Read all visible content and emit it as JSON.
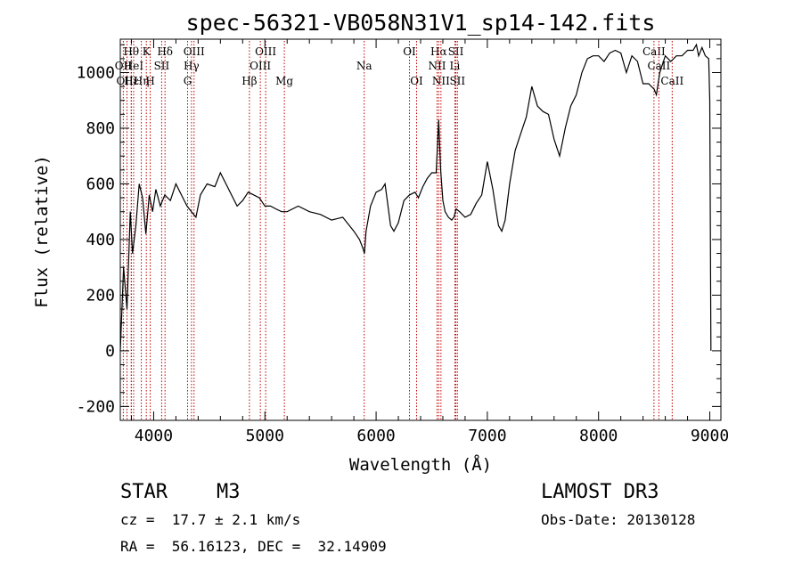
{
  "chart_data": {
    "type": "line",
    "title": "spec-56321-VB058N31V1_sp14-142.fits",
    "xlabel": "Wavelength (Å)",
    "ylabel": "Flux (relative)",
    "xlim": [
      3700,
      9100
    ],
    "ylim": [
      -250,
      1120
    ],
    "x_ticks": [
      4000,
      5000,
      6000,
      7000,
      8000,
      9000
    ],
    "y_ticks": [
      -200,
      0,
      200,
      400,
      600,
      800,
      1000
    ],
    "grid": false,
    "spectrum": {
      "name": "flux",
      "x": [
        3700,
        3730,
        3760,
        3790,
        3810,
        3840,
        3870,
        3900,
        3930,
        3960,
        3990,
        4020,
        4060,
        4100,
        4150,
        4200,
        4250,
        4300,
        4340,
        4380,
        4420,
        4480,
        4550,
        4600,
        4650,
        4700,
        4750,
        4800,
        4850,
        4900,
        4950,
        5000,
        5050,
        5100,
        5150,
        5200,
        5300,
        5400,
        5500,
        5600,
        5700,
        5800,
        5850,
        5880,
        5895,
        5910,
        5950,
        6000,
        6050,
        6080,
        6100,
        6130,
        6160,
        6200,
        6250,
        6300,
        6350,
        6380,
        6420,
        6460,
        6500,
        6540,
        6563,
        6580,
        6600,
        6620,
        6650,
        6680,
        6700,
        6720,
        6750,
        6800,
        6850,
        6900,
        6950,
        7000,
        7050,
        7080,
        7100,
        7130,
        7160,
        7200,
        7250,
        7300,
        7350,
        7400,
        7450,
        7500,
        7550,
        7600,
        7650,
        7680,
        7700,
        7750,
        7800,
        7850,
        7900,
        7950,
        8000,
        8050,
        8100,
        8150,
        8200,
        8250,
        8300,
        8350,
        8400,
        8450,
        8500,
        8520,
        8550,
        8600,
        8650,
        8700,
        8750,
        8800,
        8850,
        8880,
        8900,
        8930,
        8960,
        8990,
        9000,
        9010
      ],
      "y": [
        0,
        300,
        150,
        500,
        350,
        450,
        600,
        550,
        420,
        560,
        500,
        580,
        520,
        560,
        540,
        600,
        560,
        520,
        500,
        480,
        560,
        600,
        590,
        640,
        600,
        560,
        520,
        540,
        570,
        560,
        550,
        520,
        520,
        510,
        500,
        500,
        520,
        500,
        490,
        470,
        480,
        430,
        400,
        370,
        350,
        430,
        520,
        570,
        580,
        600,
        540,
        450,
        430,
        460,
        540,
        560,
        570,
        550,
        590,
        620,
        640,
        640,
        830,
        650,
        540,
        500,
        480,
        470,
        480,
        510,
        500,
        480,
        490,
        530,
        560,
        680,
        580,
        500,
        450,
        430,
        470,
        600,
        720,
        780,
        840,
        950,
        880,
        860,
        850,
        760,
        700,
        760,
        800,
        880,
        920,
        1000,
        1050,
        1060,
        1060,
        1040,
        1070,
        1080,
        1070,
        1000,
        1060,
        1040,
        960,
        960,
        940,
        920,
        1000,
        1060,
        1040,
        1060,
        1060,
        1080,
        1080,
        1100,
        1060,
        1090,
        1060,
        1050,
        900,
        0
      ]
    },
    "lines": [
      {
        "label": "Hθ",
        "x": 3798,
        "row": 1
      },
      {
        "label": "OII",
        "x": 3727,
        "row": 2
      },
      {
        "label": "OIII",
        "x": 3760,
        "row": 3
      },
      {
        "label": "Hε",
        "x": 3800,
        "row": 3
      },
      {
        "label": "HeI",
        "x": 3820,
        "row": 2
      },
      {
        "label": "K",
        "x": 3934,
        "row": 1
      },
      {
        "label": "SII",
        "x": 4072,
        "row": 2
      },
      {
        "label": "Hη",
        "x": 3889,
        "row": 3
      },
      {
        "label": "H",
        "x": 3969,
        "row": 3
      },
      {
        "label": "Hδ",
        "x": 4102,
        "row": 1
      },
      {
        "label": "OIII",
        "x": 4363,
        "row": 1
      },
      {
        "label": "Hγ",
        "x": 4340,
        "row": 2
      },
      {
        "label": "G",
        "x": 4305,
        "row": 3
      },
      {
        "label": "Hβ",
        "x": 4861,
        "row": 3
      },
      {
        "label": "OIII",
        "x": 5007,
        "row": 1
      },
      {
        "label": "OIII",
        "x": 4959,
        "row": 2
      },
      {
        "label": "Mg",
        "x": 5175,
        "row": 3
      },
      {
        "label": "Na",
        "x": 5893,
        "row": 2
      },
      {
        "label": "OI",
        "x": 6300,
        "row": 1
      },
      {
        "label": "OI",
        "x": 6364,
        "row": 3
      },
      {
        "label": "Hα",
        "x": 6563,
        "row": 1
      },
      {
        "label": "NII",
        "x": 6548,
        "row": 2
      },
      {
        "label": "NII",
        "x": 6583,
        "row": 3
      },
      {
        "label": "SII",
        "x": 6717,
        "row": 1
      },
      {
        "label": "Li",
        "x": 6708,
        "row": 2
      },
      {
        "label": "SII",
        "x": 6731,
        "row": 3
      },
      {
        "label": "CaII",
        "x": 8498,
        "row": 1
      },
      {
        "label": "CaII",
        "x": 8542,
        "row": 2
      },
      {
        "label": "CaII",
        "x": 8662,
        "row": 3
      }
    ]
  },
  "info": {
    "object_class": "STAR",
    "subclass": "M3",
    "survey": "LAMOST DR3",
    "redshift": "cz =  17.7 ± 2.1 km/s",
    "obs_date": "Obs-Date: 20130128",
    "coords": "RA =  56.16123, DEC =  32.14909"
  }
}
